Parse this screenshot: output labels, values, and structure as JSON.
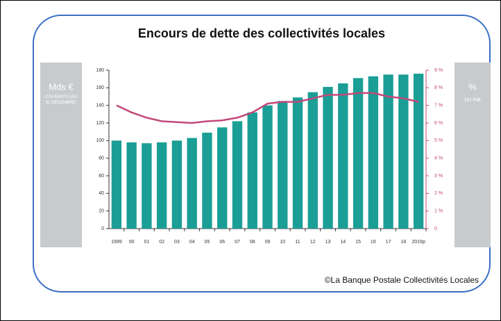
{
  "chart_data": {
    "type": "bar",
    "title": "Encours de dette des collectivités locales",
    "y_label": "Mds €",
    "y_sublabel": "COURANTS (AU 31 DÉCEMBRE)",
    "y2_label": "%",
    "y2_sublabel": "DU PIB",
    "source": "©La Banque Postale Collectivités Locales",
    "categories": [
      "1999",
      "00",
      "01",
      "02",
      "03",
      "04",
      "05",
      "06",
      "07",
      "08",
      "09",
      "10",
      "11",
      "12",
      "13",
      "14",
      "15",
      "16",
      "17",
      "18",
      "2019p"
    ],
    "series": [
      {
        "type": "bar",
        "color": "#1a9e96",
        "values": [
          100,
          98,
          97,
          98,
          100,
          103,
          109,
          115,
          122,
          132,
          140,
          145,
          149,
          155,
          161,
          165,
          171,
          173,
          175,
          175,
          176
        ]
      },
      {
        "type": "line",
        "axis": "y2",
        "color": "#c2497a",
        "values": [
          7.0,
          6.6,
          6.3,
          6.1,
          6.05,
          6.0,
          6.1,
          6.15,
          6.3,
          6.6,
          7.1,
          7.2,
          7.2,
          7.4,
          7.6,
          7.6,
          7.7,
          7.7,
          7.5,
          7.4,
          7.2
        ]
      }
    ],
    "ylim": [
      0,
      180
    ],
    "yticks": [
      0,
      20,
      40,
      60,
      80,
      100,
      120,
      140,
      160,
      180
    ],
    "y2lim": [
      0,
      9
    ],
    "y2ticks": [
      {
        "value": 0,
        "label": "0"
      },
      {
        "value": 1,
        "label": "1 %"
      },
      {
        "value": 2,
        "label": "2 %"
      },
      {
        "value": 3,
        "label": "3 %"
      },
      {
        "value": 4,
        "label": "4 %"
      },
      {
        "value": 5,
        "label": "5 %"
      },
      {
        "value": 6,
        "label": "6 %"
      },
      {
        "value": 7,
        "label": "7 %"
      },
      {
        "value": 8,
        "label": "8 %"
      },
      {
        "value": 9,
        "label": "9 %"
      }
    ],
    "y2color": "#c2497a",
    "grid": false
  }
}
